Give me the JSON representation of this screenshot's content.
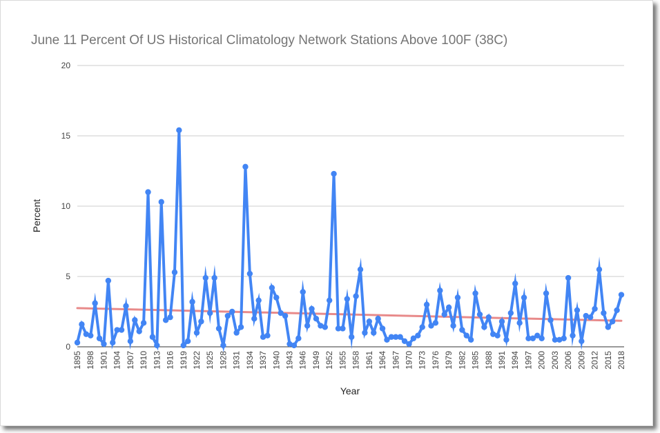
{
  "chart_data": {
    "type": "line",
    "title": "June 11 Percent Of US Historical Climatology Network Stations Above 100F (38C)",
    "xlabel": "Year",
    "ylabel": "Percent",
    "xlim": [
      1895,
      2018
    ],
    "ylim": [
      0,
      20
    ],
    "y_ticks": [
      0,
      5,
      10,
      15,
      20
    ],
    "x_tick_step": 3,
    "grid": true,
    "legend": "none",
    "colors": {
      "series": "#4285f4",
      "trend": "#e88a8a",
      "grid": "#cccccc",
      "title": "#757575"
    },
    "series": [
      {
        "x": [
          1895,
          1896,
          1897,
          1898,
          1899,
          1900,
          1901,
          1902,
          1903,
          1904,
          1905,
          1906,
          1907,
          1908,
          1909,
          1910,
          1911,
          1912,
          1913,
          1914,
          1915,
          1916,
          1917,
          1918,
          1919,
          1920,
          1921,
          1922,
          1923,
          1924,
          1925,
          1926,
          1927,
          1928,
          1929,
          1930,
          1931,
          1932,
          1933,
          1934,
          1935,
          1936,
          1937,
          1938,
          1939,
          1940,
          1941,
          1942,
          1943,
          1944,
          1945,
          1946,
          1947,
          1948,
          1949,
          1950,
          1951,
          1952,
          1953,
          1954,
          1955,
          1956,
          1957,
          1958,
          1959,
          1960,
          1961,
          1962,
          1963,
          1964,
          1965,
          1966,
          1967,
          1968,
          1969,
          1970,
          1971,
          1972,
          1973,
          1974,
          1975,
          1976,
          1977,
          1978,
          1979,
          1980,
          1981,
          1982,
          1983,
          1984,
          1985,
          1986,
          1987,
          1988,
          1989,
          1990,
          1991,
          1992,
          1993,
          1994,
          1995,
          1996,
          1997,
          1998,
          1999,
          2000,
          2001,
          2002,
          2003,
          2004,
          2005,
          2006,
          2007,
          2008,
          2009,
          2010,
          2011,
          2012,
          2013,
          2014,
          2015,
          2016,
          2017,
          2018
        ],
        "y": [
          0.3,
          1.6,
          0.9,
          0.8,
          3.1,
          0.6,
          0.2,
          4.7,
          0.3,
          1.2,
          1.2,
          2.9,
          0.4,
          1.9,
          1.1,
          1.7,
          11.0,
          0.7,
          0.1,
          10.3,
          1.9,
          2.1,
          5.3,
          15.4,
          0.1,
          0.4,
          3.2,
          1.0,
          1.8,
          4.9,
          2.4,
          4.9,
          1.3,
          0.1,
          2.2,
          2.5,
          1.0,
          1.4,
          12.8,
          5.2,
          2.0,
          3.3,
          0.7,
          0.8,
          4.2,
          3.5,
          2.4,
          2.2,
          0.2,
          0.1,
          0.6,
          3.9,
          1.5,
          2.7,
          2.0,
          1.5,
          1.4,
          3.3,
          12.3,
          1.3,
          1.3,
          3.4,
          0.7,
          3.6,
          5.5,
          1.0,
          1.8,
          1.0,
          2.0,
          1.3,
          0.5,
          0.7,
          0.7,
          0.7,
          0.4,
          0.2,
          0.6,
          0.8,
          1.4,
          3.0,
          1.5,
          1.7,
          4.0,
          2.3,
          2.8,
          1.5,
          3.5,
          1.2,
          0.8,
          0.5,
          3.8,
          2.3,
          1.4,
          2.1,
          0.9,
          0.8,
          1.8,
          0.5,
          2.4,
          4.5,
          1.7,
          3.5,
          0.6,
          0.6,
          0.8,
          0.6,
          3.8,
          1.9,
          0.5,
          0.5,
          0.6,
          4.9,
          0.8,
          2.6,
          0.4,
          2.2,
          2.1,
          2.7,
          5.5,
          2.4,
          1.4,
          1.8,
          2.6,
          3.7
        ]
      }
    ],
    "trendline": {
      "x": [
        1895,
        2018
      ],
      "y": [
        2.75,
        1.85
      ]
    }
  }
}
